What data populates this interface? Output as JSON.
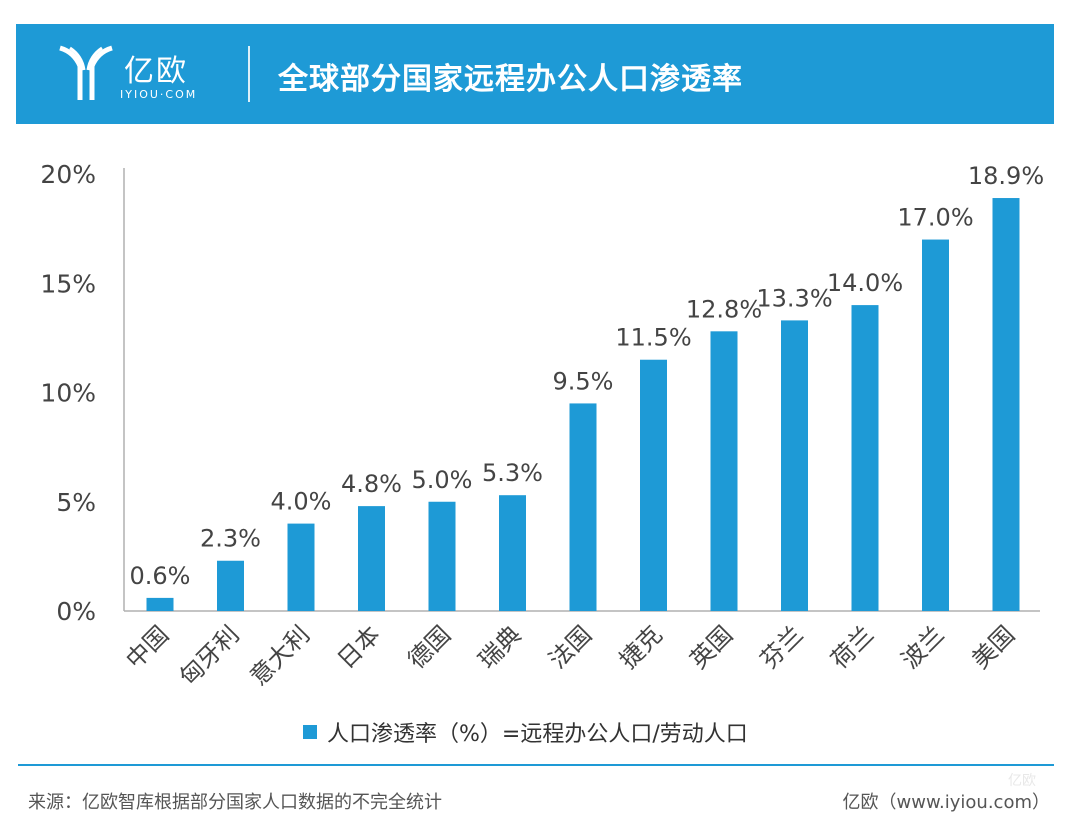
{
  "header": {
    "logo_text": "亿欧",
    "logo_sub": "IYIOU·COM",
    "title": "全球部分国家远程办公人口渗透率"
  },
  "colors": {
    "accent": "#1e9ad6",
    "bar": "#1e9ad6",
    "axis": "#b0b0b0",
    "text": "#444444"
  },
  "chart_data": {
    "type": "bar",
    "title": "全球部分国家远程办公人口渗透率",
    "categories": [
      "中国",
      "匈牙利",
      "意大利",
      "日本",
      "德国",
      "瑞典",
      "法国",
      "捷克",
      "英国",
      "芬兰",
      "荷兰",
      "波兰",
      "美国"
    ],
    "values": [
      0.6,
      2.3,
      4.0,
      4.8,
      5.0,
      5.3,
      9.5,
      11.5,
      12.8,
      13.3,
      14.0,
      17.0,
      18.9
    ],
    "value_labels": [
      "0.6%",
      "2.3%",
      "4.0%",
      "4.8%",
      "5.0%",
      "5.3%",
      "9.5%",
      "11.5%",
      "12.8%",
      "13.3%",
      "14.0%",
      "17.0%",
      "18.9%"
    ],
    "ylim": [
      0,
      20
    ],
    "yticks": [
      0,
      5,
      10,
      15,
      20
    ],
    "ytick_labels": [
      "0%",
      "5%",
      "10%",
      "15%",
      "20%"
    ],
    "xlabel": "",
    "ylabel": "",
    "grid": false,
    "legend": "人口渗透率（%）=远程办公人口/劳动人口"
  },
  "footer": {
    "source": "来源：亿欧智库根据部分国家人口数据的不完全统计",
    "credit": "亿欧（www.iyiou.com）",
    "watermark": "亿欧"
  }
}
